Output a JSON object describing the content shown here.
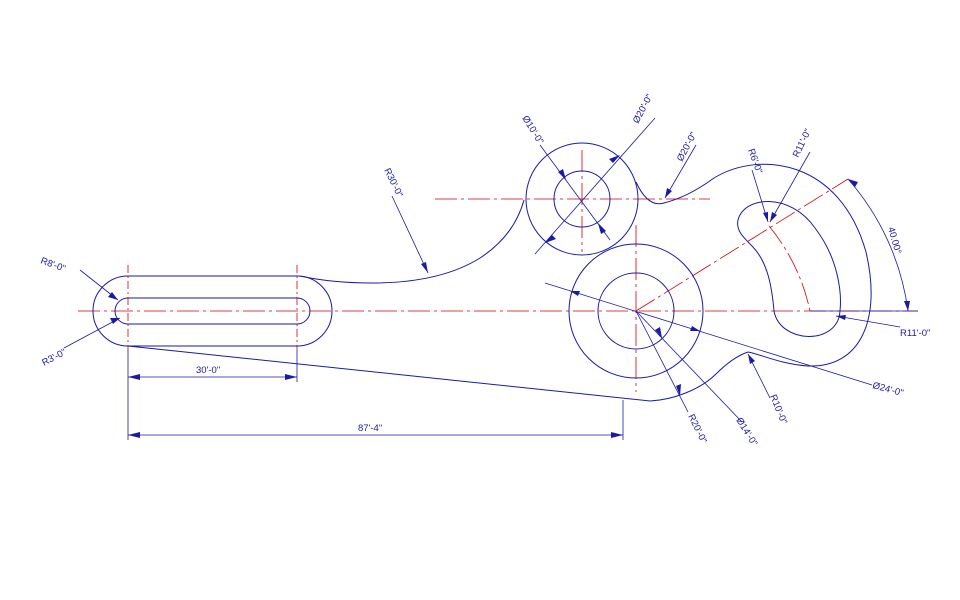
{
  "drawing": {
    "dimensions": {
      "r8": "R8'-0\"",
      "r3": "R3'-0\"",
      "slot_len": "30'-0\"",
      "overall_len": "87'-4\"",
      "r30": "R30'-0\"",
      "d10": "Ø10'-0\"",
      "d20a": "Ø20'-0\"",
      "d20b": "Ø20'-0\"",
      "r6": "R6'-0\"",
      "r11_top": "R11'-0\"",
      "angle40": "40.00°",
      "r11_right": "R11'-0\"",
      "d24": "Ø24'-0\"",
      "r10": "R10'-0\"",
      "d14": "Ø14'-0\"",
      "r20": "R20'-0\""
    },
    "colors": {
      "outline": "#1a1aa6",
      "centerline": "#d40000",
      "background": "#ffffff"
    }
  }
}
